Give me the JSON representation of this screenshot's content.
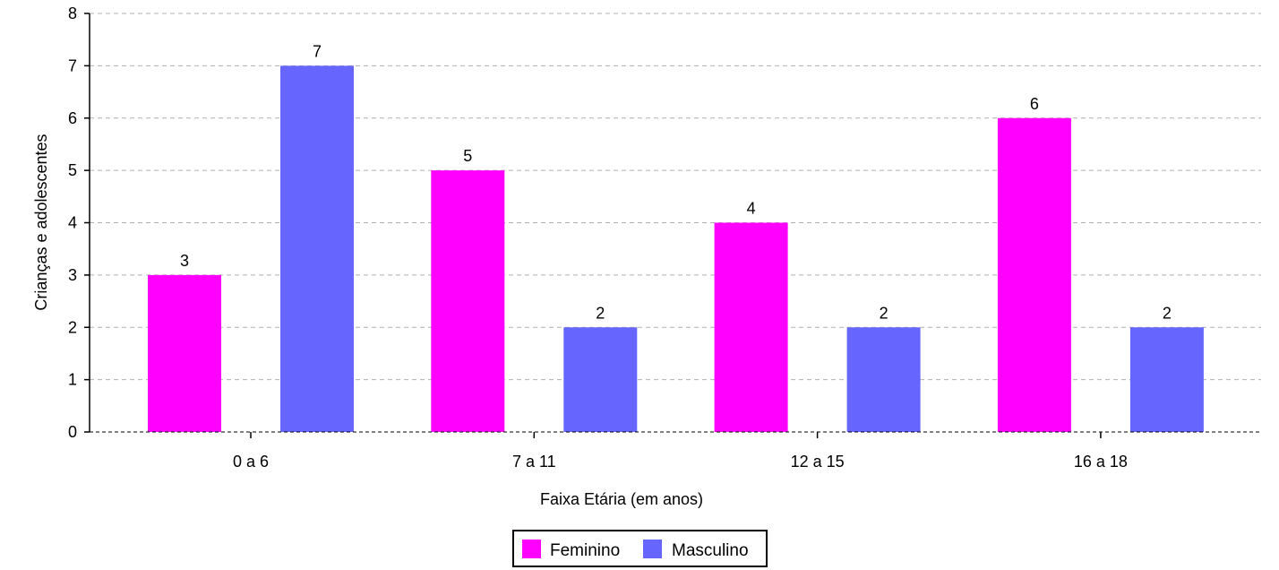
{
  "chart_data": {
    "type": "bar",
    "categories": [
      "0 a  6",
      "7 a 11",
      "12 a 15",
      "16 a 18"
    ],
    "series": [
      {
        "name": "Feminino",
        "values": [
          3,
          5,
          4,
          6
        ],
        "color": "#ff00ff"
      },
      {
        "name": "Masculino",
        "values": [
          7,
          2,
          2,
          2
        ],
        "color": "#6666ff"
      }
    ],
    "xlabel": "Faixa Etária (em anos)",
    "ylabel": "Crianças e adolescentes",
    "ylim": [
      0,
      8
    ],
    "yticks": [
      0,
      1,
      2,
      3,
      4,
      5,
      6,
      7,
      8
    ],
    "grid": true,
    "legend": "bottom-center"
  }
}
